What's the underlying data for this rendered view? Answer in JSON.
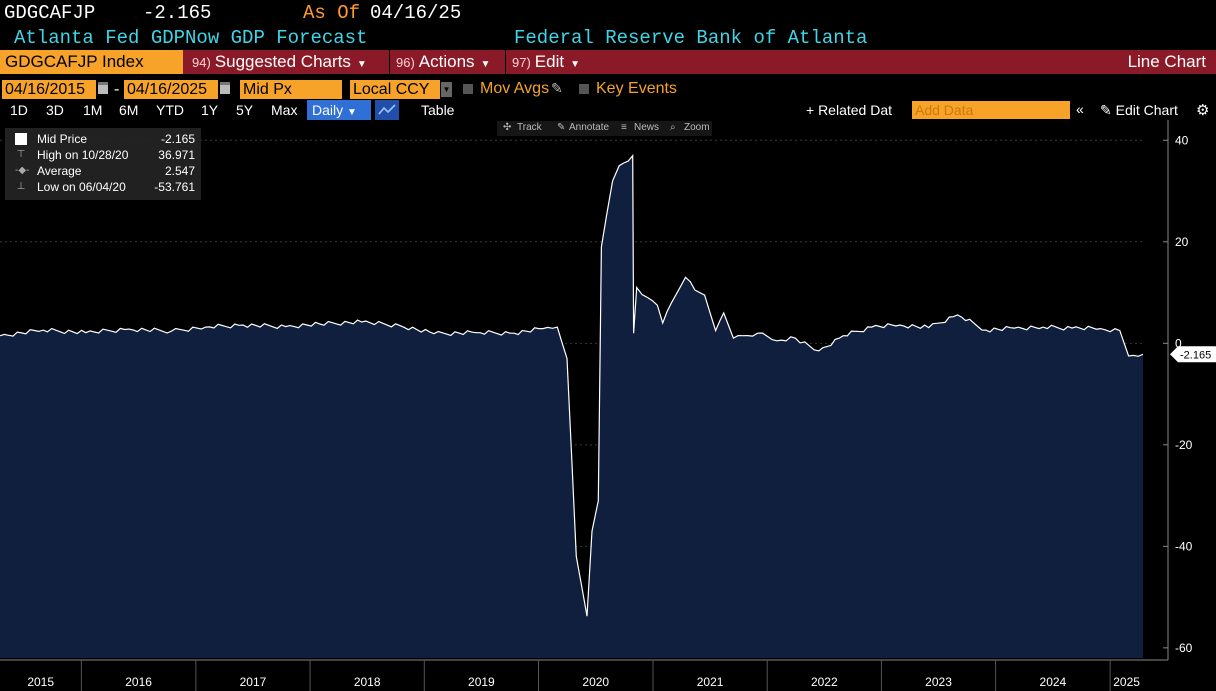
{
  "header": {
    "ticker": "GDGCAFJP",
    "last_value": "-2.165",
    "as_of_label": "As Of",
    "as_of_date": "04/16/25",
    "description": "Atlanta Fed GDPNow GDP Forecast",
    "source": "Federal Reserve Bank of Atlanta"
  },
  "menubar": {
    "security": "GDGCAFJP Index",
    "suggested_num": "94)",
    "suggested_label": "Suggested Charts",
    "actions_num": "96)",
    "actions_label": "Actions",
    "edit_num": "97)",
    "edit_label": "Edit",
    "chart_type": "Line Chart"
  },
  "controls": {
    "start_date": "04/16/2015",
    "dash": "-",
    "end_date": "04/16/2025",
    "price_field": "Mid Px",
    "currency": "Local CCY",
    "mov_avgs": "Mov Avgs",
    "key_events": "Key Events"
  },
  "periods": {
    "p1d": "1D",
    "p3d": "3D",
    "p1m": "1M",
    "p6m": "6M",
    "pytd": "YTD",
    "p1y": "1Y",
    "p5y": "5Y",
    "pmax": "Max",
    "frequency": "Daily",
    "table": "Table",
    "related": "+ Related Dat",
    "add_data_placeholder": "Add Data",
    "edit_chart": "Edit Chart"
  },
  "toolstrip": {
    "track": "Track",
    "annotate": "Annotate",
    "news": "News",
    "zoom": "Zoom"
  },
  "legend": {
    "mid_price_label": "Mid Price",
    "mid_price_value": "-2.165",
    "high_label": "High on 10/28/20",
    "high_value": "36.971",
    "average_label": "Average",
    "average_value": "2.547",
    "low_label": "Low on 06/04/20",
    "low_value": "-53.761"
  },
  "colors": {
    "fill": "#0f1f3d",
    "line": "#ffffff",
    "accent_orange": "#f7a32a",
    "title_cyan": "#3fd4e6",
    "bar_red": "#8b1a28"
  },
  "chart_data": {
    "type": "area",
    "series": [
      {
        "name": "Mid Price",
        "x": [
          "2015-04-16",
          "2015-09-01",
          "2016-01-15",
          "2016-06-01",
          "2016-10-15",
          "2017-02-01",
          "2017-06-01",
          "2017-10-15",
          "2018-02-01",
          "2018-06-15",
          "2018-10-15",
          "2019-02-01",
          "2019-06-15",
          "2019-10-15",
          "2020-01-15",
          "2020-03-01",
          "2020-04-01",
          "2020-05-01",
          "2020-06-04",
          "2020-06-20",
          "2020-07-10",
          "2020-07-20",
          "2020-08-05",
          "2020-08-25",
          "2020-09-15",
          "2020-10-28",
          "2020-10-31",
          "2020-11-10",
          "2020-12-15",
          "2021-01-15",
          "2021-02-01",
          "2021-03-01",
          "2021-04-15",
          "2021-05-15",
          "2021-06-15",
          "2021-07-20",
          "2021-08-15",
          "2021-09-15",
          "2021-10-15",
          "2021-12-01",
          "2022-02-01",
          "2022-04-01",
          "2022-06-15",
          "2022-09-01",
          "2022-12-01",
          "2023-03-01",
          "2023-06-01",
          "2023-09-01",
          "2023-12-01",
          "2024-03-01",
          "2024-06-01",
          "2024-09-01",
          "2024-12-01",
          "2025-02-01",
          "2025-03-01",
          "2025-04-16"
        ],
        "y": [
          1.5,
          2.6,
          2.1,
          2.8,
          2.4,
          3.2,
          3.6,
          3.3,
          3.8,
          4.2,
          3.5,
          1.9,
          2.1,
          2.0,
          2.9,
          3.2,
          -3.0,
          -42.0,
          -53.761,
          -37.0,
          -31.0,
          19.0,
          25.0,
          32.0,
          35.0,
          36.971,
          2.0,
          11.0,
          9.0,
          7.5,
          4.0,
          8.0,
          13.0,
          10.5,
          9.5,
          2.5,
          6.0,
          1.0,
          1.5,
          2.0,
          0.5,
          1.0,
          -1.5,
          1.5,
          3.2,
          3.6,
          3.1,
          5.6,
          2.6,
          3.0,
          3.2,
          3.0,
          2.9,
          2.5,
          -2.5,
          -2.165
        ]
      }
    ],
    "xlabel": "",
    "ylabel": "",
    "ylim": [
      -62,
      44
    ],
    "yticks": [
      40,
      20,
      0,
      -20,
      -40,
      -60
    ],
    "ytick_labels": [
      "40",
      "20",
      "0",
      "-20",
      "-40",
      "-60"
    ],
    "xticks": [
      "2015",
      "2016",
      "2017",
      "2018",
      "2019",
      "2020",
      "2021",
      "2022",
      "2023",
      "2024",
      "2025"
    ],
    "last_value_label": "-2.165",
    "grid": true,
    "legend_placement": "top-left"
  }
}
